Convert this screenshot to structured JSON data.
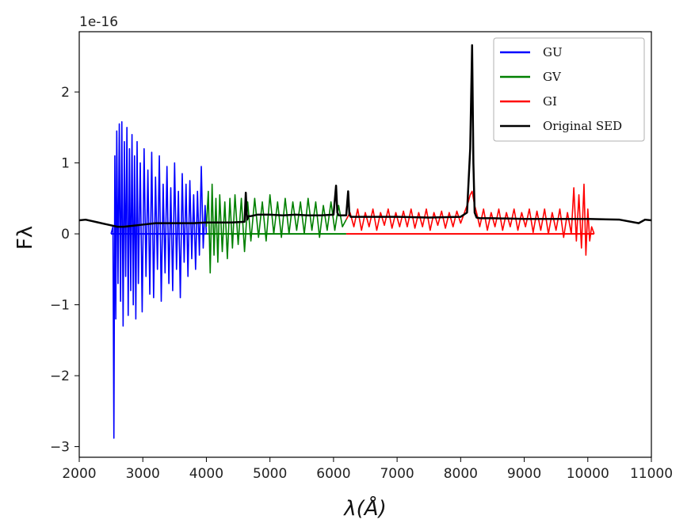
{
  "chart_data": {
    "type": "line",
    "scale_label": "1e-16",
    "xlabel": "λ(Å)",
    "ylabel": "Fλ",
    "xlim": [
      2000,
      11000
    ],
    "ylim": [
      -3.15,
      2.85
    ],
    "xticks": [
      2000,
      3000,
      4000,
      5000,
      6000,
      7000,
      8000,
      9000,
      10000,
      11000
    ],
    "xtick_labels": [
      "2000",
      "3000",
      "4000",
      "5000",
      "6000",
      "7000",
      "8000",
      "9000",
      "10000",
      "11000"
    ],
    "yticks": [
      -3,
      -2,
      -1,
      0,
      1,
      2
    ],
    "ytick_labels": [
      "−3",
      "−2",
      "−1",
      "0",
      "1",
      "2"
    ],
    "legend_position": "top-right",
    "colors": {
      "GU": "#0000ff",
      "GV": "#008000",
      "GI": "#ff0000",
      "Original SED": "#000000"
    },
    "series": [
      {
        "name": "GU",
        "range": [
          2500,
          4000
        ],
        "x": [
          2500,
          2530,
          2545,
          2560,
          2575,
          2590,
          2610,
          2630,
          2650,
          2670,
          2690,
          2710,
          2730,
          2750,
          2770,
          2790,
          2810,
          2830,
          2850,
          2870,
          2890,
          2910,
          2930,
          2960,
          2990,
          3020,
          3050,
          3080,
          3110,
          3140,
          3170,
          3200,
          3230,
          3260,
          3290,
          3320,
          3350,
          3380,
          3410,
          3440,
          3470,
          3500,
          3530,
          3560,
          3590,
          3620,
          3650,
          3680,
          3710,
          3740,
          3770,
          3800,
          3830,
          3860,
          3890,
          3920,
          3950,
          3980,
          4000
        ],
        "y": [
          0,
          0.1,
          -2.88,
          1.1,
          -1.2,
          1.45,
          -0.7,
          1.55,
          -0.95,
          1.58,
          -1.3,
          1.3,
          -0.6,
          1.5,
          -1.15,
          1.2,
          -0.8,
          1.4,
          -1.0,
          1.1,
          -1.2,
          1.3,
          -0.7,
          1.0,
          -1.1,
          1.2,
          -0.6,
          0.9,
          -0.85,
          1.15,
          -0.9,
          0.8,
          -0.5,
          1.1,
          -0.95,
          0.7,
          -0.55,
          0.95,
          -0.7,
          0.65,
          -0.8,
          1.0,
          -0.5,
          0.6,
          -0.9,
          0.85,
          -0.4,
          0.7,
          -0.6,
          0.75,
          -0.35,
          0.55,
          -0.5,
          0.6,
          -0.3,
          0.95,
          -0.2,
          0.4,
          0
        ]
      },
      {
        "name": "GV",
        "range": [
          4000,
          6200
        ],
        "x": [
          4000,
          4030,
          4060,
          4090,
          4120,
          4150,
          4180,
          4210,
          4250,
          4290,
          4330,
          4370,
          4410,
          4450,
          4500,
          4550,
          4600,
          4650,
          4700,
          4760,
          4820,
          4880,
          4940,
          5000,
          5060,
          5120,
          5180,
          5240,
          5300,
          5360,
          5420,
          5480,
          5540,
          5600,
          5660,
          5720,
          5780,
          5840,
          5900,
          5960,
          6020,
          6080,
          6140,
          6200
        ],
        "y": [
          0.1,
          0.6,
          -0.55,
          0.7,
          -0.3,
          0.5,
          -0.4,
          0.55,
          -0.25,
          0.45,
          -0.35,
          0.5,
          -0.2,
          0.55,
          -0.15,
          0.5,
          -0.25,
          0.45,
          -0.1,
          0.5,
          -0.05,
          0.45,
          -0.1,
          0.55,
          0.0,
          0.45,
          -0.05,
          0.5,
          0.0,
          0.45,
          0.05,
          0.45,
          0.0,
          0.5,
          0.05,
          0.45,
          -0.05,
          0.4,
          0.05,
          0.45,
          0.05,
          0.4,
          0.1,
          0.2
        ]
      },
      {
        "name": "GI",
        "range": [
          6200,
          10100
        ],
        "x": [
          6200,
          6260,
          6320,
          6380,
          6440,
          6500,
          6560,
          6620,
          6680,
          6740,
          6800,
          6860,
          6920,
          6980,
          7040,
          7100,
          7160,
          7220,
          7280,
          7340,
          7400,
          7460,
          7520,
          7580,
          7640,
          7700,
          7760,
          7820,
          7880,
          7940,
          8000,
          8060,
          8120,
          8150,
          8180,
          8200,
          8220,
          8250,
          8300,
          8360,
          8420,
          8480,
          8540,
          8600,
          8660,
          8720,
          8780,
          8840,
          8900,
          8960,
          9020,
          9080,
          9140,
          9200,
          9260,
          9320,
          9380,
          9440,
          9500,
          9560,
          9620,
          9680,
          9740,
          9780,
          9820,
          9860,
          9900,
          9940,
          9970,
          10000,
          10030,
          10060,
          10100
        ],
        "y": [
          0.2,
          0.3,
          0.1,
          0.35,
          0.05,
          0.3,
          0.1,
          0.35,
          0.05,
          0.3,
          0.12,
          0.35,
          0.08,
          0.3,
          0.1,
          0.32,
          0.1,
          0.35,
          0.08,
          0.3,
          0.1,
          0.35,
          0.05,
          0.3,
          0.12,
          0.32,
          0.08,
          0.3,
          0.1,
          0.32,
          0.15,
          0.3,
          0.45,
          0.55,
          0.6,
          0.5,
          0.4,
          0.3,
          0.1,
          0.35,
          0.05,
          0.3,
          0.1,
          0.35,
          0.05,
          0.3,
          0.1,
          0.35,
          0.05,
          0.3,
          0.1,
          0.35,
          0.02,
          0.32,
          0.05,
          0.35,
          0.0,
          0.3,
          0.05,
          0.35,
          -0.05,
          0.3,
          0.0,
          0.65,
          -0.1,
          0.55,
          -0.2,
          0.7,
          -0.3,
          0.35,
          -0.1,
          0.1,
          0.0
        ]
      },
      {
        "name": "Original SED",
        "x": [
          2000,
          2100,
          2200,
          2300,
          2400,
          2500,
          2600,
          2700,
          2800,
          3000,
          3200,
          3400,
          3600,
          3800,
          4000,
          4200,
          4400,
          4600,
          4620,
          4640,
          4660,
          4700,
          4800,
          5000,
          5200,
          5400,
          5600,
          5800,
          6000,
          6040,
          6060,
          6080,
          6120,
          6200,
          6230,
          6250,
          6270,
          6300,
          6500,
          7000,
          7500,
          8000,
          8100,
          8150,
          8180,
          8200,
          8220,
          8250,
          8300,
          8500,
          9000,
          9500,
          10000,
          10500,
          10800,
          10900,
          11000
        ],
        "y": [
          0.19,
          0.2,
          0.18,
          0.16,
          0.14,
          0.12,
          0.1,
          0.1,
          0.11,
          0.13,
          0.15,
          0.15,
          0.15,
          0.15,
          0.16,
          0.16,
          0.16,
          0.17,
          0.58,
          0.2,
          0.25,
          0.25,
          0.27,
          0.27,
          0.26,
          0.27,
          0.26,
          0.26,
          0.27,
          0.68,
          0.3,
          0.26,
          0.26,
          0.26,
          0.6,
          0.27,
          0.24,
          0.24,
          0.24,
          0.24,
          0.23,
          0.24,
          0.3,
          1.2,
          2.66,
          1.0,
          0.3,
          0.23,
          0.22,
          0.22,
          0.21,
          0.21,
          0.21,
          0.2,
          0.15,
          0.2,
          0.19
        ]
      }
    ]
  }
}
